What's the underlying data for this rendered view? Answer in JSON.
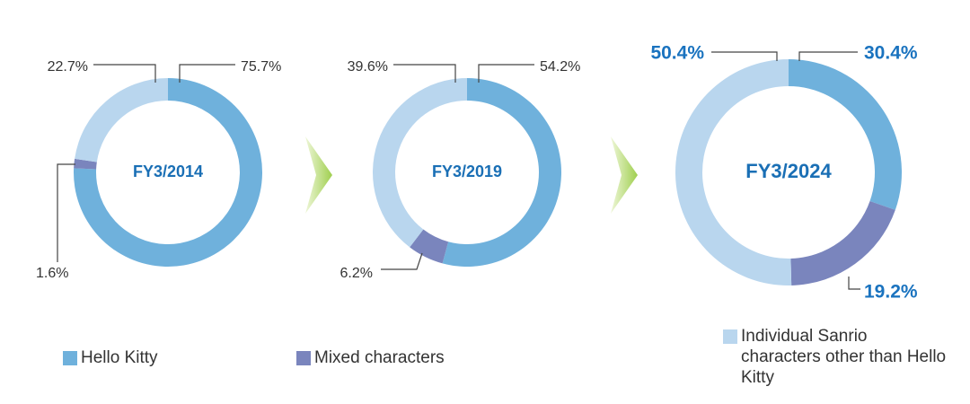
{
  "chart_data": [
    {
      "type": "donut",
      "title": "FY3/2014",
      "values": [
        75.7,
        1.6,
        22.7
      ],
      "value_labels": [
        "75.7%",
        "1.6%",
        "22.7%"
      ]
    },
    {
      "type": "donut",
      "title": "FY3/2019",
      "values": [
        54.2,
        6.2,
        39.6
      ],
      "value_labels": [
        "54.2%",
        "6.2%",
        "39.6%"
      ]
    },
    {
      "type": "donut",
      "title": "FY3/2024",
      "values": [
        30.4,
        19.2,
        50.4
      ],
      "value_labels": [
        "30.4%",
        "19.2%",
        "50.4%"
      ]
    }
  ],
  "legend": [
    {
      "name": "Hello Kitty",
      "color": "#6fb1dc"
    },
    {
      "name": "Mixed characters",
      "color": "#7a85bd"
    },
    {
      "name": "Individual Sanrio characters other than Hello Kitty",
      "color": "#b9d6ee"
    }
  ]
}
